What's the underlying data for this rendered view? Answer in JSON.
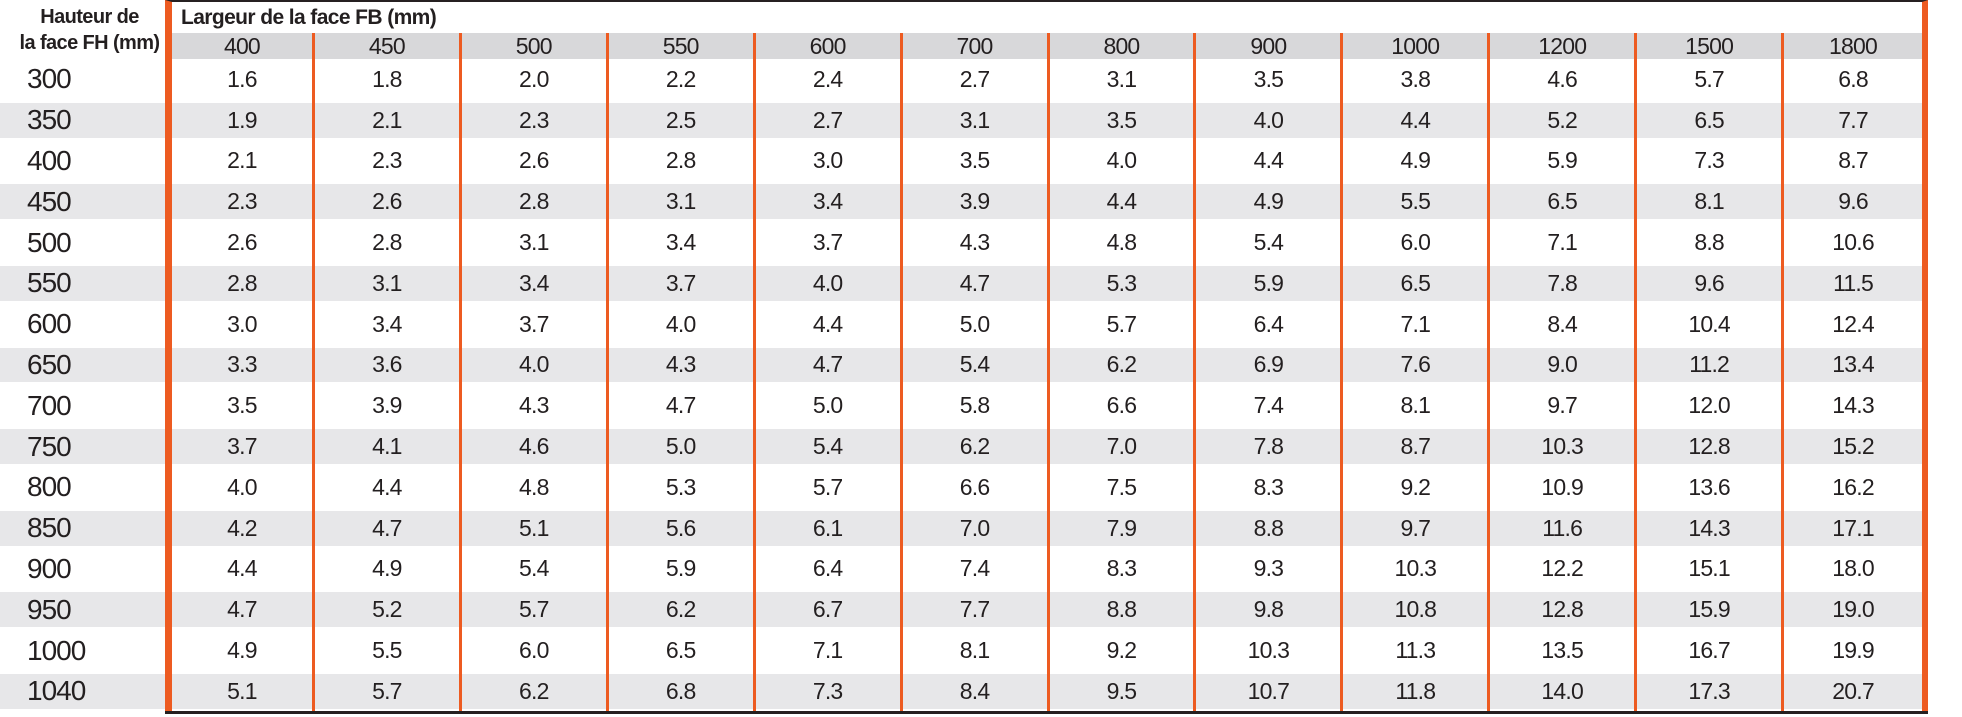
{
  "table": {
    "row_axis_label_line1": "Hauteur de",
    "row_axis_label_line2": "la face FH (mm)",
    "col_axis_label": "Largeur de la face FB (mm)",
    "columns": [
      "400",
      "450",
      "500",
      "550",
      "600",
      "700",
      "800",
      "900",
      "1000",
      "1200",
      "1500",
      "1800"
    ],
    "rows": [
      {
        "label": "300",
        "values": [
          "1.6",
          "1.8",
          "2.0",
          "2.2",
          "2.4",
          "2.7",
          "3.1",
          "3.5",
          "3.8",
          "4.6",
          "5.7",
          "6.8"
        ]
      },
      {
        "label": "350",
        "values": [
          "1.9",
          "2.1",
          "2.3",
          "2.5",
          "2.7",
          "3.1",
          "3.5",
          "4.0",
          "4.4",
          "5.2",
          "6.5",
          "7.7"
        ]
      },
      {
        "label": "400",
        "values": [
          "2.1",
          "2.3",
          "2.6",
          "2.8",
          "3.0",
          "3.5",
          "4.0",
          "4.4",
          "4.9",
          "5.9",
          "7.3",
          "8.7"
        ]
      },
      {
        "label": "450",
        "values": [
          "2.3",
          "2.6",
          "2.8",
          "3.1",
          "3.4",
          "3.9",
          "4.4",
          "4.9",
          "5.5",
          "6.5",
          "8.1",
          "9.6"
        ]
      },
      {
        "label": "500",
        "values": [
          "2.6",
          "2.8",
          "3.1",
          "3.4",
          "3.7",
          "4.3",
          "4.8",
          "5.4",
          "6.0",
          "7.1",
          "8.8",
          "10.6"
        ]
      },
      {
        "label": "550",
        "values": [
          "2.8",
          "3.1",
          "3.4",
          "3.7",
          "4.0",
          "4.7",
          "5.3",
          "5.9",
          "6.5",
          "7.8",
          "9.6",
          "11.5"
        ]
      },
      {
        "label": "600",
        "values": [
          "3.0",
          "3.4",
          "3.7",
          "4.0",
          "4.4",
          "5.0",
          "5.7",
          "6.4",
          "7.1",
          "8.4",
          "10.4",
          "12.4"
        ]
      },
      {
        "label": "650",
        "values": [
          "3.3",
          "3.6",
          "4.0",
          "4.3",
          "4.7",
          "5.4",
          "6.2",
          "6.9",
          "7.6",
          "9.0",
          "11.2",
          "13.4"
        ]
      },
      {
        "label": "700",
        "values": [
          "3.5",
          "3.9",
          "4.3",
          "4.7",
          "5.0",
          "5.8",
          "6.6",
          "7.4",
          "8.1",
          "9.7",
          "12.0",
          "14.3"
        ]
      },
      {
        "label": "750",
        "values": [
          "3.7",
          "4.1",
          "4.6",
          "5.0",
          "5.4",
          "6.2",
          "7.0",
          "7.8",
          "8.7",
          "10.3",
          "12.8",
          "15.2"
        ]
      },
      {
        "label": "800",
        "values": [
          "4.0",
          "4.4",
          "4.8",
          "5.3",
          "5.7",
          "6.6",
          "7.5",
          "8.3",
          "9.2",
          "10.9",
          "13.6",
          "16.2"
        ]
      },
      {
        "label": "850",
        "values": [
          "4.2",
          "4.7",
          "5.1",
          "5.6",
          "6.1",
          "7.0",
          "7.9",
          "8.8",
          "9.7",
          "11.6",
          "14.3",
          "17.1"
        ]
      },
      {
        "label": "900",
        "values": [
          "4.4",
          "4.9",
          "5.4",
          "5.9",
          "6.4",
          "7.4",
          "8.3",
          "9.3",
          "10.3",
          "12.2",
          "15.1",
          "18.0"
        ]
      },
      {
        "label": "950",
        "values": [
          "4.7",
          "5.2",
          "5.7",
          "6.2",
          "6.7",
          "7.7",
          "8.8",
          "9.8",
          "10.8",
          "12.8",
          "15.9",
          "19.0"
        ]
      },
      {
        "label": "1000",
        "values": [
          "4.9",
          "5.5",
          "6.0",
          "6.5",
          "7.1",
          "8.1",
          "9.2",
          "10.3",
          "11.3",
          "13.5",
          "16.7",
          "19.9"
        ]
      },
      {
        "label": "1040",
        "values": [
          "5.1",
          "5.7",
          "6.2",
          "6.8",
          "7.3",
          "8.4",
          "9.5",
          "10.7",
          "11.8",
          "14.0",
          "17.3",
          "20.7"
        ]
      }
    ],
    "colors": {
      "accent_orange": "#ED5B21",
      "header_gray": "#D8D8DA",
      "stripe_gray": "#E7E7E9",
      "text": "#231F20",
      "rule_dark": "#262021"
    }
  }
}
